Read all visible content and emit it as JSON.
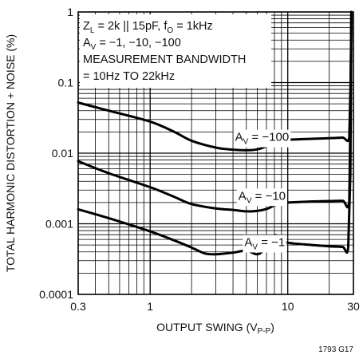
{
  "chart_data": {
    "type": "line",
    "title": "",
    "xlabel": "OUTPUT SWING (V",
    "xlabel_sub": "P-P",
    "xlabel_end": ")",
    "ylabel": "TOTAL HARMONIC DISTORTION + NOISE (%)",
    "xscale": "log",
    "yscale": "log",
    "xlim": [
      0.3,
      30
    ],
    "ylim": [
      0.0001,
      1
    ],
    "grid": true,
    "x_ticks": [
      {
        "v": 0.3,
        "label": "0.3"
      },
      {
        "v": 1,
        "label": "1"
      },
      {
        "v": 10,
        "label": "10"
      },
      {
        "v": 30,
        "label": "30"
      }
    ],
    "y_ticks": [
      {
        "v": 1,
        "label": "1"
      },
      {
        "v": 0.1,
        "label": "0.1"
      },
      {
        "v": 0.01,
        "label": "0.01"
      },
      {
        "v": 0.001,
        "label": "0.001"
      },
      {
        "v": 0.0001,
        "label": "0.0001"
      }
    ],
    "annotation": {
      "line1": {
        "a": "Z",
        "a_sub": "L",
        "b": " = 2k || 15pF, f",
        "b_sub": "O",
        "c": " = 1kHz"
      },
      "line2": {
        "a": "A",
        "a_sub": "V",
        "b": " = −1, −10, −100"
      },
      "line3": "MEASUREMENT BANDWIDTH",
      "line4": "= 10Hz TO 22kHz"
    },
    "series": [
      {
        "name": "A_V = −100",
        "label": {
          "a": "A",
          "sub": "V",
          "b": " = −100"
        },
        "points": [
          [
            0.3,
            0.052
          ],
          [
            0.5,
            0.04
          ],
          [
            1.0,
            0.028
          ],
          [
            1.5,
            0.02
          ],
          [
            2.0,
            0.015
          ],
          [
            3.0,
            0.012
          ],
          [
            4.0,
            0.0112
          ],
          [
            5.0,
            0.011
          ],
          [
            6.0,
            0.0113
          ],
          [
            7.0,
            0.0125
          ],
          [
            8.0,
            0.0143
          ],
          [
            9.0,
            0.0153
          ],
          [
            10.0,
            0.0155
          ],
          [
            15.0,
            0.016
          ],
          [
            20.0,
            0.0163
          ],
          [
            25.0,
            0.0166
          ],
          [
            28.0,
            0.017
          ],
          [
            28.6,
            0.1
          ],
          [
            29.0,
            1.0
          ]
        ]
      },
      {
        "name": "A_V = −10",
        "label": {
          "a": "A",
          "sub": "V",
          "b": " = −10"
        },
        "points": [
          [
            0.3,
            0.0077
          ],
          [
            0.5,
            0.0052
          ],
          [
            1.0,
            0.0033
          ],
          [
            1.5,
            0.0024
          ],
          [
            2.0,
            0.0019
          ],
          [
            3.0,
            0.00165
          ],
          [
            4.0,
            0.00157
          ],
          [
            5.0,
            0.0015
          ],
          [
            6.0,
            0.00152
          ],
          [
            7.0,
            0.00162
          ],
          [
            8.0,
            0.00182
          ],
          [
            9.0,
            0.00198
          ],
          [
            10.0,
            0.002
          ],
          [
            15.0,
            0.00207
          ],
          [
            20.0,
            0.0021
          ],
          [
            25.0,
            0.00212
          ],
          [
            28.0,
            0.00215
          ],
          [
            28.6,
            0.05
          ],
          [
            29.0,
            1.0
          ]
        ]
      },
      {
        "name": "A_V = −1",
        "label": {
          "a": "A",
          "sub": "V",
          "b": " = −1"
        },
        "points": [
          [
            0.3,
            0.0016
          ],
          [
            0.5,
            0.0012
          ],
          [
            1.0,
            0.00078
          ],
          [
            1.5,
            0.00058
          ],
          [
            2.0,
            0.00046
          ],
          [
            2.5,
            0.00038
          ],
          [
            3.0,
            0.00037
          ],
          [
            4.0,
            0.00039
          ],
          [
            5.0,
            0.00042
          ],
          [
            5.5,
            0.00039
          ],
          [
            6.0,
            0.00037
          ],
          [
            6.5,
            0.0004
          ],
          [
            7.0,
            0.00048
          ],
          [
            7.5,
            0.00062
          ],
          [
            8.0,
            0.00069
          ],
          [
            8.5,
            0.00067
          ],
          [
            9.0,
            0.0006
          ],
          [
            10.0,
            0.00054
          ],
          [
            15.0,
            0.0005
          ],
          [
            20.0,
            0.00048
          ],
          [
            25.0,
            0.00047
          ],
          [
            27.5,
            0.00046
          ],
          [
            28.5,
            0.005
          ],
          [
            29.0,
            1.0
          ]
        ]
      }
    ],
    "footnote": "1793 G17"
  }
}
